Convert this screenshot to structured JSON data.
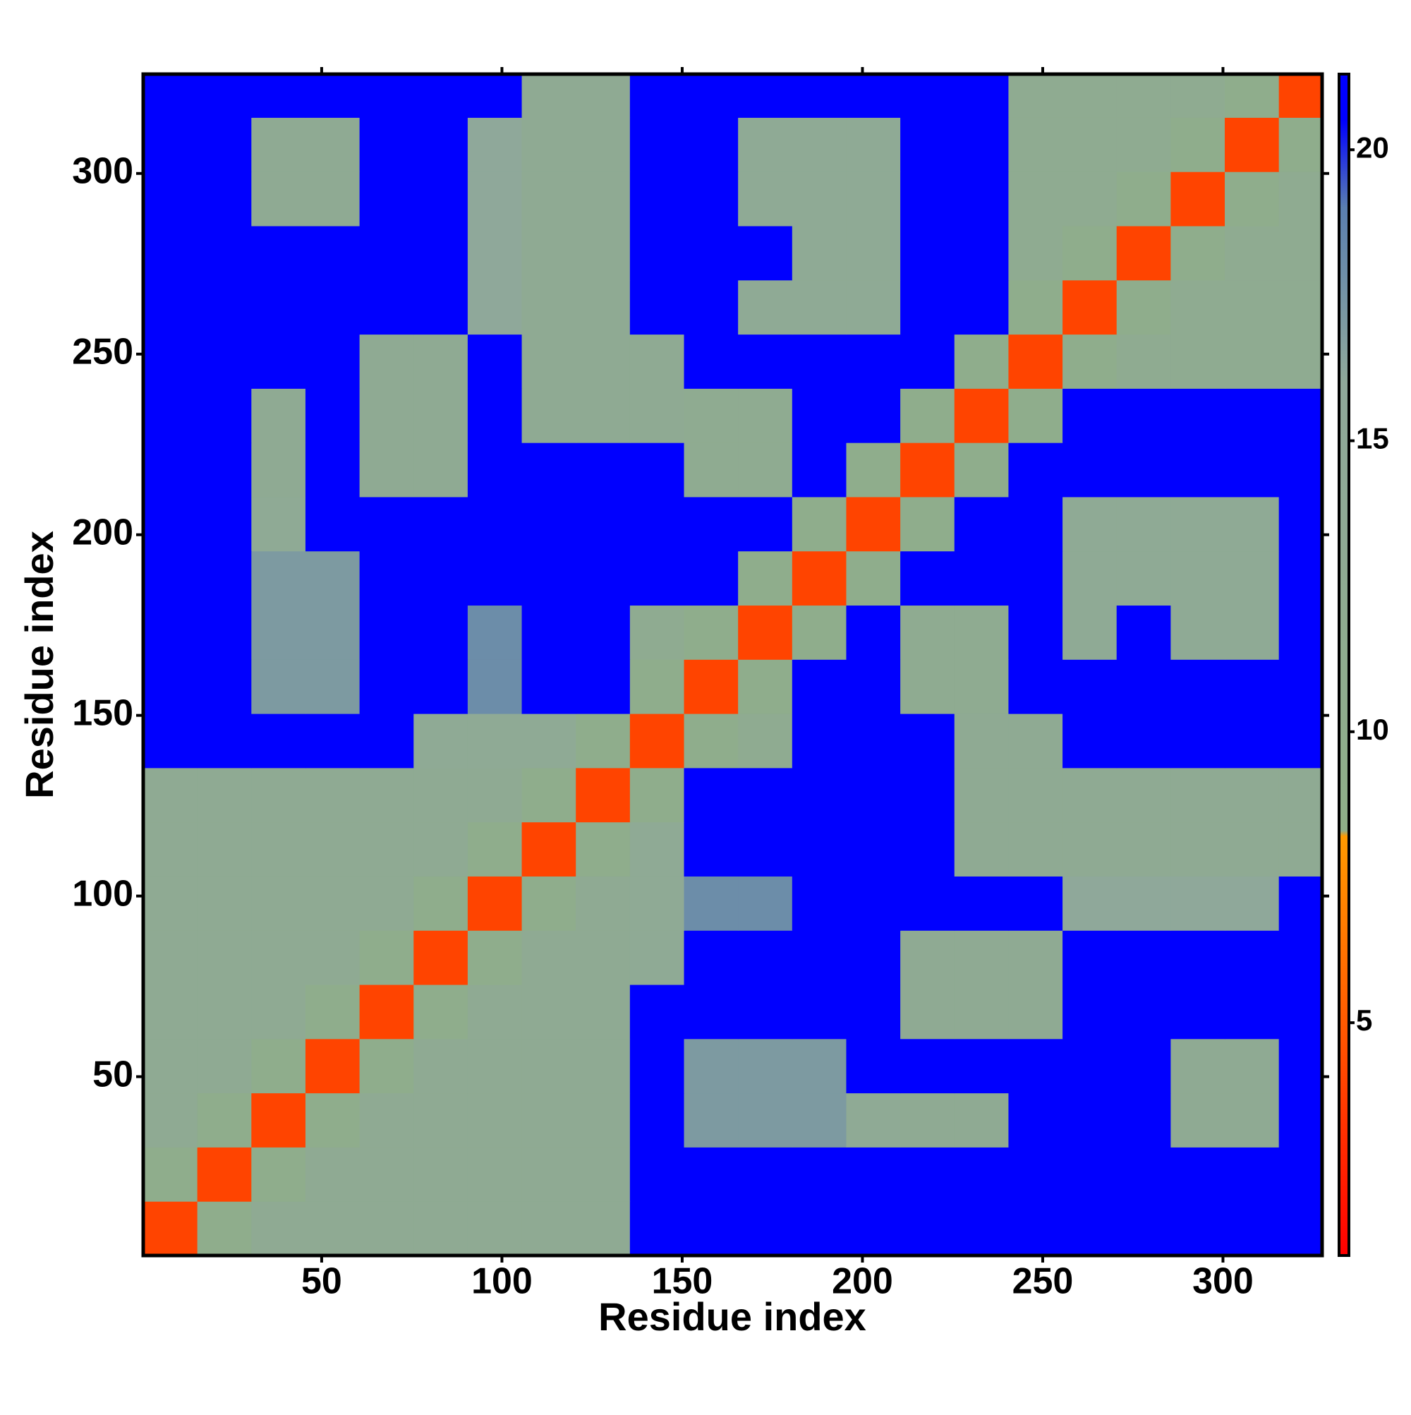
{
  "chart_data": {
    "type": "heatmap",
    "xlabel": "Residue index",
    "ylabel": "Residue index",
    "xbins": [
      0.5,
      15.5,
      30.5,
      45.5,
      60.5,
      75.5,
      90.5,
      105.5,
      120.5,
      135.5,
      150.5,
      165.5,
      180.5,
      195.5,
      210.5,
      225.5,
      240.5,
      255.5,
      270.5,
      285.5,
      300.5,
      315.5,
      327.5
    ],
    "ybins": [
      0.5,
      15.5,
      30.5,
      45.5,
      60.5,
      75.5,
      90.5,
      105.5,
      120.5,
      135.5,
      150.5,
      165.5,
      180.5,
      195.5,
      210.5,
      225.5,
      240.5,
      255.5,
      270.5,
      285.5,
      300.5,
      315.5,
      327.5
    ],
    "values": [
      [
        4,
        10,
        13,
        13,
        13,
        13,
        13,
        13,
        13,
        21,
        21,
        21,
        21,
        21,
        21,
        21,
        21,
        21,
        21,
        21,
        21,
        21
      ],
      [
        10,
        4,
        10,
        13,
        13,
        13,
        13,
        13,
        13,
        21,
        21,
        21,
        21,
        21,
        21,
        21,
        21,
        21,
        21,
        21,
        21,
        21
      ],
      [
        13,
        10,
        4,
        10,
        13,
        13,
        13,
        13,
        13,
        21,
        17,
        17,
        17,
        14,
        13,
        13,
        21,
        21,
        21,
        13,
        13,
        21
      ],
      [
        13,
        13,
        10,
        4,
        10,
        13,
        13,
        13,
        13,
        21,
        17,
        17,
        17,
        21,
        21,
        21,
        21,
        21,
        21,
        13,
        13,
        21
      ],
      [
        13,
        13,
        13,
        10,
        4,
        10,
        13,
        13,
        13,
        21,
        21,
        21,
        21,
        21,
        13,
        13,
        13,
        21,
        21,
        21,
        21,
        21
      ],
      [
        13,
        13,
        13,
        13,
        10,
        4,
        10,
        13,
        13,
        14,
        21,
        21,
        21,
        21,
        13,
        13,
        13,
        21,
        21,
        21,
        21,
        21
      ],
      [
        13,
        13,
        13,
        13,
        13,
        10,
        4,
        10,
        13,
        14,
        18,
        18,
        21,
        21,
        21,
        21,
        21,
        16,
        16,
        16,
        16,
        21
      ],
      [
        13,
        13,
        13,
        13,
        13,
        13,
        10,
        4,
        10,
        14,
        21,
        21,
        21,
        21,
        21,
        13,
        13,
        13,
        13,
        13,
        13,
        13
      ],
      [
        13,
        13,
        13,
        13,
        13,
        13,
        13,
        10,
        4,
        10,
        21,
        21,
        21,
        21,
        21,
        13,
        13,
        13,
        13,
        13,
        13,
        13
      ],
      [
        21,
        21,
        21,
        21,
        21,
        14,
        14,
        14,
        10,
        4,
        10,
        12,
        21,
        21,
        21,
        13,
        13,
        21,
        21,
        21,
        21,
        21
      ],
      [
        21,
        21,
        17,
        17,
        21,
        21,
        18,
        21,
        21,
        10,
        4,
        10,
        21,
        21,
        12,
        12,
        21,
        21,
        21,
        21,
        21,
        21
      ],
      [
        21,
        21,
        17,
        17,
        21,
        21,
        18,
        21,
        21,
        12,
        10,
        4,
        10,
        21,
        12,
        12,
        21,
        14,
        21,
        14,
        14,
        21
      ],
      [
        21,
        21,
        17,
        17,
        21,
        21,
        21,
        21,
        21,
        21,
        21,
        10,
        4,
        10,
        21,
        21,
        21,
        14,
        14,
        14,
        14,
        21
      ],
      [
        21,
        21,
        14,
        21,
        21,
        21,
        21,
        21,
        21,
        21,
        21,
        21,
        10,
        4,
        10,
        21,
        21,
        14,
        14,
        14,
        14,
        21
      ],
      [
        21,
        21,
        13,
        21,
        13,
        13,
        21,
        21,
        21,
        21,
        12,
        12,
        21,
        10,
        4,
        10,
        21,
        21,
        21,
        21,
        21,
        21
      ],
      [
        21,
        21,
        13,
        21,
        13,
        13,
        21,
        13,
        13,
        13,
        12,
        12,
        21,
        21,
        10,
        4,
        10,
        21,
        21,
        21,
        21,
        21
      ],
      [
        21,
        21,
        21,
        21,
        13,
        13,
        21,
        13,
        13,
        13,
        21,
        21,
        21,
        21,
        21,
        10,
        4,
        10,
        12,
        12,
        12,
        12
      ],
      [
        21,
        21,
        21,
        21,
        21,
        21,
        16,
        13,
        13,
        21,
        21,
        14,
        14,
        14,
        21,
        21,
        10,
        4,
        10,
        12,
        12,
        12
      ],
      [
        21,
        21,
        21,
        21,
        21,
        21,
        16,
        13,
        13,
        21,
        21,
        21,
        14,
        14,
        21,
        21,
        12,
        10,
        4,
        10,
        12,
        12
      ],
      [
        21,
        21,
        13,
        13,
        21,
        21,
        16,
        13,
        13,
        21,
        21,
        14,
        14,
        14,
        21,
        21,
        12,
        12,
        10,
        4,
        10,
        12
      ],
      [
        21,
        21,
        13,
        13,
        21,
        21,
        16,
        13,
        13,
        21,
        21,
        14,
        14,
        14,
        21,
        21,
        12,
        12,
        12,
        10,
        4,
        10
      ],
      [
        21,
        21,
        21,
        21,
        21,
        21,
        21,
        13,
        13,
        21,
        21,
        21,
        21,
        21,
        21,
        21,
        12,
        12,
        12,
        12,
        10,
        4
      ]
    ],
    "xlim": [
      0.5,
      327.5
    ],
    "ylim": [
      0.5,
      327.5
    ],
    "xticks": [
      50,
      100,
      150,
      200,
      250,
      300
    ],
    "yticks": [
      50,
      100,
      150,
      200,
      250,
      300
    ],
    "clim": [
      1,
      21.3
    ],
    "cticks": [
      5,
      10,
      15,
      20
    ],
    "colorscale": [
      [
        1,
        "#ff0000"
      ],
      [
        5,
        "#ff5a00"
      ],
      [
        8.2,
        "#ff9a00"
      ],
      [
        8.3,
        "#8fae88"
      ],
      [
        16,
        "#8fa89a"
      ],
      [
        19,
        "#5a7fb0"
      ],
      [
        20.5,
        "#0000ff"
      ],
      [
        21.3,
        "#0000ff"
      ]
    ]
  }
}
